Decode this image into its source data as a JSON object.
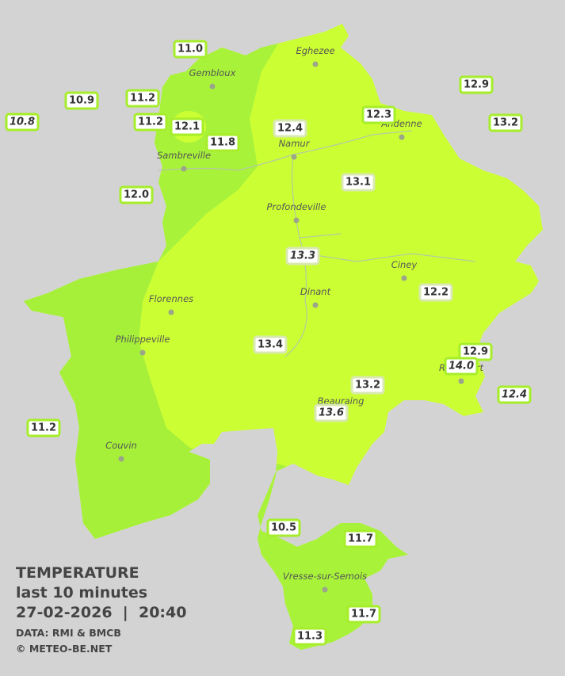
{
  "cities": [
    "Eghezee",
    "Gembloux",
    "Andenne",
    "Namur",
    "Sambreville",
    "Profondeville",
    "Ciney",
    "Dinant",
    "Florennes",
    "Philippeville",
    "Beauraing",
    "Rochefort",
    "Couvin",
    "Vresse-sur-Semois"
  ],
  "stations": [
    {
      "value": "11.0",
      "italic": false
    },
    {
      "value": "10.9",
      "italic": false
    },
    {
      "value": "11.2",
      "italic": false
    },
    {
      "value": "10.8",
      "italic": true
    },
    {
      "value": "11.2",
      "italic": false
    },
    {
      "value": "12.1",
      "italic": false
    },
    {
      "value": "11.8",
      "italic": false
    },
    {
      "value": "12.4",
      "italic": false
    },
    {
      "value": "12.3",
      "italic": false
    },
    {
      "value": "12.9",
      "italic": false
    },
    {
      "value": "13.2",
      "italic": false
    },
    {
      "value": "12.0",
      "italic": false
    },
    {
      "value": "13.1",
      "italic": false
    },
    {
      "value": "13.3",
      "italic": true
    },
    {
      "value": "12.2",
      "italic": false
    },
    {
      "value": "13.4",
      "italic": false
    },
    {
      "value": "12.9",
      "italic": false
    },
    {
      "value": "14.0",
      "italic": true
    },
    {
      "value": "12.4",
      "italic": true
    },
    {
      "value": "13.2",
      "italic": false
    },
    {
      "value": "13.6",
      "italic": true
    },
    {
      "value": "11.2",
      "italic": false
    },
    {
      "value": "10.5",
      "italic": false
    },
    {
      "value": "11.7",
      "italic": false
    },
    {
      "value": "11.7",
      "italic": false
    },
    {
      "value": "11.3",
      "italic": false
    }
  ],
  "legend": {
    "title": "TEMPERATURE",
    "period": "last 10 minutes",
    "date": "27-02-2026",
    "separator": "|",
    "time": "20:40",
    "source": "DATA: RMI & BMCB",
    "copyright": "© METEO-BE.NET"
  }
}
